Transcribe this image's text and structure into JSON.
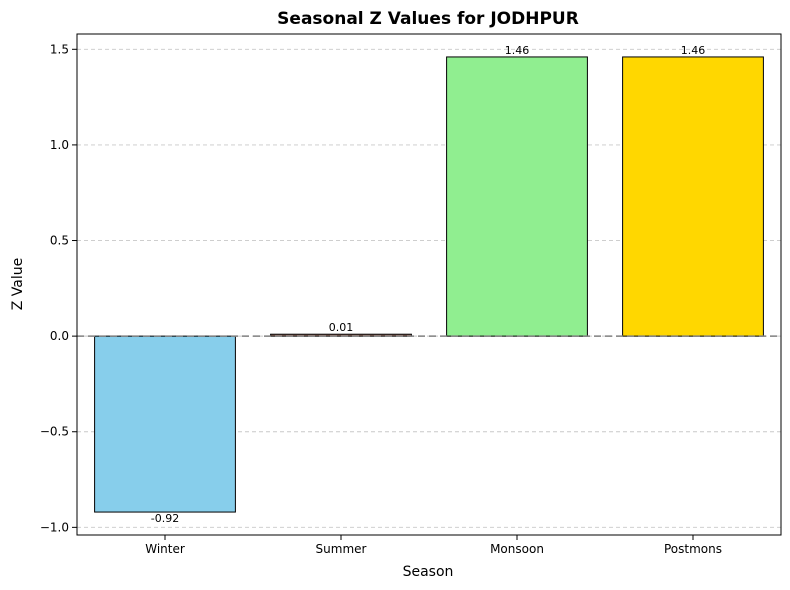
{
  "chart_data": {
    "type": "bar",
    "title": "Seasonal Z Values for JODHPUR",
    "xlabel": "Season",
    "ylabel": "Z Value",
    "categories": [
      "Winter",
      "Summer",
      "Monsoon",
      "Postmons"
    ],
    "values": [
      -0.92,
      0.01,
      1.46,
      1.46
    ],
    "value_labels": [
      "-0.92",
      "0.01",
      "1.46",
      "1.46"
    ],
    "colors": [
      "#87CEEB",
      "#A47B6E",
      "#90EE90",
      "#FFD700"
    ],
    "edge_color": "#000000",
    "ylim": [
      -1.04,
      1.58
    ],
    "yticks": [
      -1.0,
      -0.5,
      0.0,
      0.5,
      1.0,
      1.5
    ],
    "ytick_labels": [
      "−1.0",
      "−0.5",
      "0.0",
      "0.5",
      "1.0",
      "1.5"
    ],
    "grid": "y-dashed",
    "baseline": 0
  }
}
